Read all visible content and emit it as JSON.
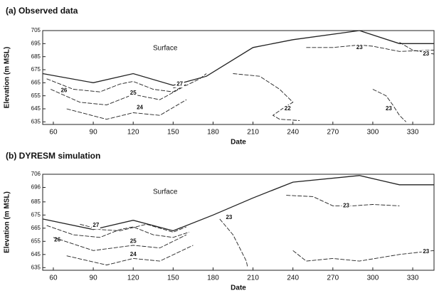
{
  "chart_data": [
    {
      "type": "contour",
      "title": "(a) Observed data",
      "x_label": "Date",
      "y_label": "Elevation (m MSL)",
      "annotation": "Surface",
      "xlim": [
        52,
        346
      ],
      "ylim": [
        633,
        705
      ],
      "xticks": [
        60,
        90,
        120,
        150,
        180,
        210,
        240,
        270,
        300,
        330
      ],
      "yticks": [
        635,
        645,
        655,
        665,
        675,
        685,
        695,
        705
      ],
      "surface": {
        "x": [
          52,
          90,
          120,
          150,
          175,
          210,
          240,
          290,
          320,
          346
        ],
        "y": [
          672,
          665,
          672,
          663,
          670,
          692,
          698,
          705,
          695,
          695
        ]
      },
      "contours": [
        {
          "level": 26,
          "x": [
            55,
            75,
            95,
            110,
            120,
            135,
            150,
            160
          ],
          "y": [
            668,
            660,
            658,
            664,
            666,
            660,
            658,
            664
          ],
          "label_x": 68,
          "label_y": 659
        },
        {
          "level": 25,
          "x": [
            58,
            80,
            100,
            120,
            140,
            158
          ],
          "y": [
            660,
            650,
            648,
            656,
            652,
            662
          ],
          "label_x": 120,
          "label_y": 657
        },
        {
          "level": 24,
          "x": [
            70,
            100,
            120,
            140,
            160
          ],
          "y": [
            645,
            637,
            642,
            640,
            652
          ],
          "label_x": 125,
          "label_y": 646
        },
        {
          "level": 27,
          "x": [
            150,
            160,
            170,
            175
          ],
          "y": [
            661,
            663,
            668,
            672
          ],
          "label_x": 155,
          "label_y": 664
        },
        {
          "level": 22,
          "x": [
            195,
            215,
            230,
            240,
            232,
            225,
            230,
            245
          ],
          "y": [
            672,
            670,
            660,
            650,
            645,
            640,
            637,
            636
          ],
          "label_x": 236,
          "label_y": 645
        },
        {
          "level": 23,
          "x": [
            250,
            270,
            290,
            300,
            320,
            346
          ],
          "y": [
            692,
            692,
            694,
            693,
            689,
            690
          ],
          "label_x": 290,
          "label_y": 692
        },
        {
          "level": 23,
          "x": [
            300,
            310,
            315,
            320,
            325
          ],
          "y": [
            660,
            655,
            648,
            640,
            635
          ],
          "label_x": 312,
          "label_y": 645
        },
        {
          "level": 23,
          "x": [
            320,
            330,
            346
          ],
          "y": [
            696,
            690,
            687
          ],
          "label_x": 340,
          "label_y": 687
        }
      ]
    },
    {
      "type": "contour",
      "title": "(b) DYRESM simulation",
      "x_label": "Date",
      "y_label": "Elevation (m MSL)",
      "annotation": "Surface",
      "xlim": [
        52,
        346
      ],
      "ylim": [
        633,
        706
      ],
      "xticks": [
        60,
        90,
        120,
        150,
        180,
        210,
        240,
        270,
        300,
        330
      ],
      "yticks": [
        635,
        645,
        655,
        665,
        675,
        685,
        696,
        706
      ],
      "surface": {
        "x": [
          52,
          90,
          120,
          150,
          180,
          210,
          240,
          290,
          320,
          346
        ],
        "y": [
          672,
          664,
          671,
          663,
          675,
          688,
          700,
          705,
          698,
          698
        ]
      },
      "contours": [
        {
          "level": 26,
          "x": [
            55,
            75,
            95,
            110,
            120,
            135,
            150,
            162
          ],
          "y": [
            667,
            660,
            658,
            664,
            666,
            660,
            658,
            662
          ],
          "label_x": 63,
          "label_y": 656
        },
        {
          "level": 27,
          "x": [
            80,
            95,
            110,
            130,
            150,
            160
          ],
          "y": [
            668,
            664,
            663,
            668,
            662,
            666
          ],
          "label_x": 92,
          "label_y": 667
        },
        {
          "level": 25,
          "x": [
            60,
            90,
            120,
            140,
            160
          ],
          "y": [
            658,
            648,
            652,
            650,
            660
          ],
          "label_x": 120,
          "label_y": 655
        },
        {
          "level": 24,
          "x": [
            70,
            100,
            120,
            140,
            165
          ],
          "y": [
            644,
            637,
            642,
            640,
            652
          ],
          "label_x": 120,
          "label_y": 645
        },
        {
          "level": 23,
          "x": [
            185,
            195,
            200,
            205,
            206
          ],
          "y": [
            672,
            660,
            650,
            640,
            635
          ],
          "label_x": 192,
          "label_y": 673
        },
        {
          "level": 23,
          "x": [
            235,
            255,
            270,
            285,
            300,
            320
          ],
          "y": [
            690,
            689,
            682,
            682,
            683,
            682
          ],
          "label_x": 280,
          "label_y": 682
        },
        {
          "level": 23,
          "x": [
            240,
            250,
            270,
            290,
            320,
            346
          ],
          "y": [
            648,
            640,
            642,
            640,
            645,
            648
          ],
          "label_x": 340,
          "label_y": 647
        }
      ]
    }
  ]
}
